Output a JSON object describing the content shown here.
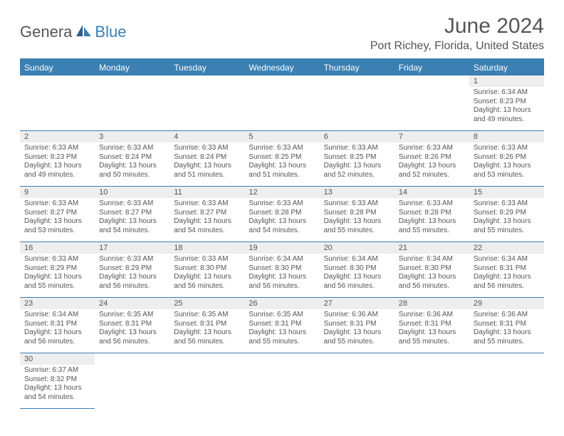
{
  "logo": {
    "part1": "Genera",
    "part2": "Blue"
  },
  "title": "June 2024",
  "location": "Port Richey, Florida, United States",
  "colors": {
    "accent": "#3b7fb3",
    "text": "#555555",
    "daynum_bg": "#eeeeee",
    "background": "#ffffff"
  },
  "weekdays": [
    "Sunday",
    "Monday",
    "Tuesday",
    "Wednesday",
    "Thursday",
    "Friday",
    "Saturday"
  ],
  "weeks": [
    [
      null,
      null,
      null,
      null,
      null,
      null,
      {
        "n": "1",
        "sr": "6:34 AM",
        "ss": "8:23 PM",
        "dl": "13 hours and 49 minutes."
      }
    ],
    [
      {
        "n": "2",
        "sr": "6:33 AM",
        "ss": "8:23 PM",
        "dl": "13 hours and 49 minutes."
      },
      {
        "n": "3",
        "sr": "6:33 AM",
        "ss": "8:24 PM",
        "dl": "13 hours and 50 minutes."
      },
      {
        "n": "4",
        "sr": "6:33 AM",
        "ss": "8:24 PM",
        "dl": "13 hours and 51 minutes."
      },
      {
        "n": "5",
        "sr": "6:33 AM",
        "ss": "8:25 PM",
        "dl": "13 hours and 51 minutes."
      },
      {
        "n": "6",
        "sr": "6:33 AM",
        "ss": "8:25 PM",
        "dl": "13 hours and 52 minutes."
      },
      {
        "n": "7",
        "sr": "6:33 AM",
        "ss": "8:26 PM",
        "dl": "13 hours and 52 minutes."
      },
      {
        "n": "8",
        "sr": "6:33 AM",
        "ss": "8:26 PM",
        "dl": "13 hours and 53 minutes."
      }
    ],
    [
      {
        "n": "9",
        "sr": "6:33 AM",
        "ss": "8:27 PM",
        "dl": "13 hours and 53 minutes."
      },
      {
        "n": "10",
        "sr": "6:33 AM",
        "ss": "8:27 PM",
        "dl": "13 hours and 54 minutes."
      },
      {
        "n": "11",
        "sr": "6:33 AM",
        "ss": "8:27 PM",
        "dl": "13 hours and 54 minutes."
      },
      {
        "n": "12",
        "sr": "6:33 AM",
        "ss": "8:28 PM",
        "dl": "13 hours and 54 minutes."
      },
      {
        "n": "13",
        "sr": "6:33 AM",
        "ss": "8:28 PM",
        "dl": "13 hours and 55 minutes."
      },
      {
        "n": "14",
        "sr": "6:33 AM",
        "ss": "8:28 PM",
        "dl": "13 hours and 55 minutes."
      },
      {
        "n": "15",
        "sr": "6:33 AM",
        "ss": "8:29 PM",
        "dl": "13 hours and 55 minutes."
      }
    ],
    [
      {
        "n": "16",
        "sr": "6:33 AM",
        "ss": "8:29 PM",
        "dl": "13 hours and 55 minutes."
      },
      {
        "n": "17",
        "sr": "6:33 AM",
        "ss": "8:29 PM",
        "dl": "13 hours and 56 minutes."
      },
      {
        "n": "18",
        "sr": "6:33 AM",
        "ss": "8:30 PM",
        "dl": "13 hours and 56 minutes."
      },
      {
        "n": "19",
        "sr": "6:34 AM",
        "ss": "8:30 PM",
        "dl": "13 hours and 56 minutes."
      },
      {
        "n": "20",
        "sr": "6:34 AM",
        "ss": "8:30 PM",
        "dl": "13 hours and 56 minutes."
      },
      {
        "n": "21",
        "sr": "6:34 AM",
        "ss": "8:30 PM",
        "dl": "13 hours and 56 minutes."
      },
      {
        "n": "22",
        "sr": "6:34 AM",
        "ss": "8:31 PM",
        "dl": "13 hours and 56 minutes."
      }
    ],
    [
      {
        "n": "23",
        "sr": "6:34 AM",
        "ss": "8:31 PM",
        "dl": "13 hours and 56 minutes."
      },
      {
        "n": "24",
        "sr": "6:35 AM",
        "ss": "8:31 PM",
        "dl": "13 hours and 56 minutes."
      },
      {
        "n": "25",
        "sr": "6:35 AM",
        "ss": "8:31 PM",
        "dl": "13 hours and 56 minutes."
      },
      {
        "n": "26",
        "sr": "6:35 AM",
        "ss": "8:31 PM",
        "dl": "13 hours and 55 minutes."
      },
      {
        "n": "27",
        "sr": "6:36 AM",
        "ss": "8:31 PM",
        "dl": "13 hours and 55 minutes."
      },
      {
        "n": "28",
        "sr": "6:36 AM",
        "ss": "8:31 PM",
        "dl": "13 hours and 55 minutes."
      },
      {
        "n": "29",
        "sr": "6:36 AM",
        "ss": "8:31 PM",
        "dl": "13 hours and 55 minutes."
      }
    ],
    [
      {
        "n": "30",
        "sr": "6:37 AM",
        "ss": "8:32 PM",
        "dl": "13 hours and 54 minutes."
      },
      null,
      null,
      null,
      null,
      null,
      null
    ]
  ],
  "cell_labels": {
    "sunrise": "Sunrise:",
    "sunset": "Sunset:",
    "daylight": "Daylight:"
  }
}
